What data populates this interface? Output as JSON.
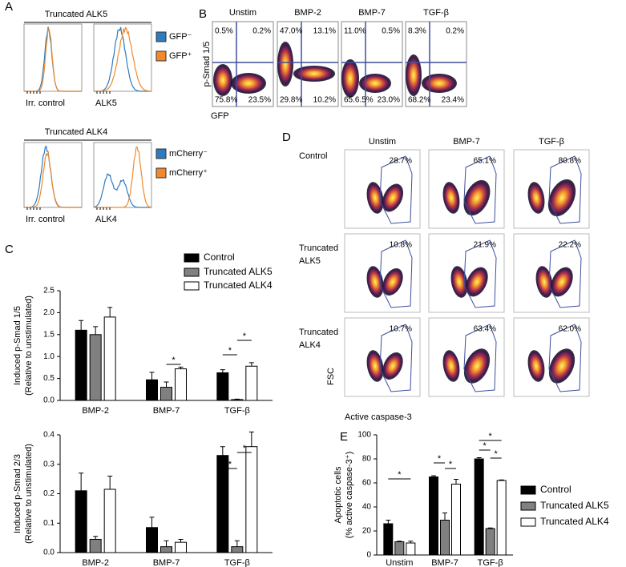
{
  "panel_labels": [
    "A",
    "B",
    "C",
    "D",
    "E"
  ],
  "panel_a": {
    "groups": [
      {
        "title": "Truncated ALK5",
        "x_labels": [
          "Irr. control",
          "ALK5"
        ],
        "legend": [
          "GFP⁻",
          "GFP⁺"
        ]
      },
      {
        "title": "Truncated ALK4",
        "x_labels": [
          "Irr. control",
          "ALK4"
        ],
        "legend": [
          "mCherry⁻",
          "mCherry⁺"
        ]
      }
    ]
  },
  "panel_b": {
    "y_label": "p-Smad 1/5",
    "x_label": "GFP",
    "columns": [
      {
        "title": "Unstim",
        "quadrants": [
          "0.5%",
          "0.2%",
          "75.8%",
          "23.5%"
        ]
      },
      {
        "title": "BMP-2",
        "quadrants": [
          "47.0%",
          "13.1%",
          "29.8%",
          "10.2%"
        ]
      },
      {
        "title": "BMP-7",
        "quadrants": [
          "11.0%",
          "0.5%",
          "65.6.5%",
          "23.0%"
        ]
      },
      {
        "title": "TGF-β",
        "quadrants": [
          "8.3%",
          "0.2%",
          "68.2%",
          "23.4%"
        ]
      }
    ]
  },
  "panel_d": {
    "columns": [
      "Unstim",
      "BMP-7",
      "TGF-β"
    ],
    "rows": [
      [
        "Control"
      ],
      [
        "Truncated",
        "ALK5"
      ],
      [
        "Truncated",
        "ALK4"
      ]
    ],
    "gates": [
      [
        "28.7%",
        "65.1%",
        "80.8%"
      ],
      [
        "10.8%",
        "21.9%",
        "22.2%"
      ],
      [
        "10.7%",
        "63.4%",
        "62.0%"
      ]
    ],
    "y_label": "FSC",
    "x_label": "Active caspase-3"
  },
  "chart_data": [
    {
      "type": "bar",
      "y_label": [
        "Induced p-Smad 1/5",
        "(Relative to unstimulated)"
      ],
      "categories": [
        "BMP-2",
        "BMP-7",
        "TGF-β"
      ],
      "series": [
        {
          "name": "Control",
          "color": "#000000",
          "values": [
            1.6,
            0.47,
            0.63
          ],
          "errors": [
            0.22,
            0.17,
            0.07
          ]
        },
        {
          "name": "Truncated ALK5",
          "color": "#808080",
          "values": [
            1.5,
            0.3,
            0.02
          ],
          "errors": [
            0.18,
            0.12,
            0.01
          ]
        },
        {
          "name": "Truncated ALK4",
          "color": "#ffffff",
          "values": [
            1.9,
            0.72,
            0.78
          ],
          "errors": [
            0.22,
            0.04,
            0.08
          ]
        }
      ],
      "ylim": [
        0,
        2.5
      ],
      "yticks": [
        {
          "value": 0,
          "label": "0.0"
        },
        {
          "value": 0.5,
          "label": "0.5"
        },
        {
          "value": 1,
          "label": "1.0"
        },
        {
          "value": 1.5,
          "label": "1.5"
        },
        {
          "value": 2,
          "label": "2.0"
        },
        {
          "value": 2.5,
          "label": "2.5"
        }
      ],
      "annotations": [
        "*",
        "*",
        "*"
      ]
    },
    {
      "type": "bar",
      "y_label": [
        "Induced p-Smad 2/3",
        "(Relative to unstimulated)"
      ],
      "categories": [
        "BMP-2",
        "BMP-7",
        "TGF-β"
      ],
      "series": [
        {
          "color": "#000000",
          "values": [
            0.21,
            0.085,
            0.33
          ],
          "errors": [
            0.06,
            0.035,
            0.03
          ]
        },
        {
          "color": "#808080",
          "values": [
            0.045,
            0.02,
            0.02
          ],
          "errors": [
            0.01,
            0.02,
            0.02
          ]
        },
        {
          "color": "#ffffff",
          "values": [
            0.215,
            0.035,
            0.36
          ],
          "errors": [
            0.045,
            0.01,
            0.05
          ]
        }
      ],
      "ylim": [
        0,
        0.4
      ],
      "yticks": [
        {
          "value": 0,
          "label": "0.0"
        },
        0.1,
        0.2,
        0.3,
        0.4
      ],
      "annotations": [
        "*",
        "*"
      ]
    },
    {
      "type": "bar",
      "y_label": [
        "Apoptotic cells",
        "(% active caspase-3⁺)"
      ],
      "categories": [
        "Unstim",
        "BMP-7",
        "TGF-β"
      ],
      "series": [
        {
          "name": "Control",
          "color": "#000000",
          "values": [
            26,
            65,
            80
          ],
          "errors": [
            3,
            1,
            1
          ]
        },
        {
          "name": "Truncated ALK5",
          "color": "#808080",
          "values": [
            11,
            29,
            22
          ],
          "errors": [
            0.5,
            6,
            0.5
          ]
        },
        {
          "name": "Truncated ALK4",
          "color": "#ffffff",
          "values": [
            10,
            59,
            62
          ],
          "errors": [
            1.5,
            4,
            0.5
          ]
        }
      ],
      "ylim": [
        0,
        100
      ],
      "yticks": [
        0,
        20,
        40,
        60,
        80,
        100
      ],
      "annotations": [
        "*",
        "*",
        "*",
        "*",
        "*",
        "*"
      ]
    }
  ]
}
